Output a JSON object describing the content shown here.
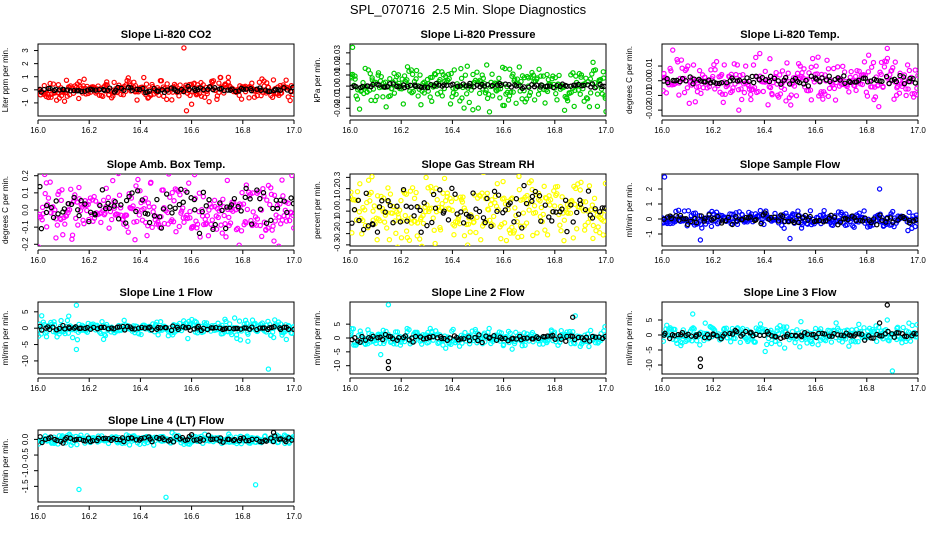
{
  "title": "SPL_070716  2.5 Min. Slope Diagnostics",
  "chart_data": [
    {
      "type": "scatter",
      "title": "Slope Li-820 CO2",
      "ylabel": "Liter ppm per min.",
      "xlim": [
        16.0,
        17.0
      ],
      "ylim": [
        -2.0,
        3.5
      ],
      "xticks": [
        16.0,
        16.2,
        16.4,
        16.6,
        16.8,
        17.0
      ],
      "xtick_labels": [
        "16.0",
        "16.2",
        "16.4",
        "16.6",
        "16.8",
        "17.0"
      ],
      "yticks": [
        -1,
        0,
        1,
        2,
        3
      ],
      "ytick_labels": [
        "-1",
        "0",
        "1",
        "2",
        "3"
      ],
      "series": [
        {
          "color": "#ff0000",
          "center": 0.0,
          "spread": 0.35,
          "outliers": [
            [
              16.57,
              3.2
            ],
            [
              16.58,
              -1.6
            ],
            [
              16.6,
              -1.1
            ]
          ]
        },
        {
          "color": "#000000",
          "center": 0.0,
          "spread": 0.1,
          "outliers": []
        }
      ]
    },
    {
      "type": "scatter",
      "title": "Slope Li-820 Pressure",
      "ylabel": "kPa per min.",
      "xlim": [
        16.0,
        17.0
      ],
      "ylim": [
        -0.027,
        0.038
      ],
      "xticks": [
        16.0,
        16.2,
        16.4,
        16.6,
        16.8,
        17.0
      ],
      "xtick_labels": [
        "16.0",
        "16.2",
        "16.4",
        "16.6",
        "16.8",
        "17.0"
      ],
      "yticks": [
        -0.02,
        -0.01,
        0.0,
        0.01,
        0.02,
        0.03
      ],
      "ytick_labels": [
        "-0.02",
        "-0.01",
        "0.00",
        "0.01",
        "0.02",
        "0.03"
      ],
      "series": [
        {
          "color": "#00cc00",
          "center": 0.0,
          "spread": 0.009,
          "outliers": [
            [
              16.01,
              0.035
            ],
            [
              17.0,
              -0.023
            ]
          ]
        },
        {
          "color": "#000000",
          "center": 0.0,
          "spread": 0.001,
          "outliers": []
        }
      ]
    },
    {
      "type": "scatter",
      "title": "Slope Li-820 Temp.",
      "ylabel": "degrees C per min.",
      "xlim": [
        16.0,
        17.0
      ],
      "ylim": [
        -0.024,
        0.025
      ],
      "xticks": [
        16.0,
        16.2,
        16.4,
        16.6,
        16.8,
        17.0
      ],
      "xtick_labels": [
        "16.0",
        "16.2",
        "16.4",
        "16.6",
        "16.8",
        "17.0"
      ],
      "yticks": [
        -0.02,
        -0.01,
        0.0,
        0.01
      ],
      "ytick_labels": [
        "-0.02",
        "-0.01",
        "0.00",
        "0.01"
      ],
      "series": [
        {
          "color": "#ff00ff",
          "center": 0.0,
          "spread": 0.007,
          "outliers": [
            [
              16.88,
              0.022
            ],
            [
              16.3,
              -0.02
            ]
          ]
        },
        {
          "color": "#000000",
          "center": 0.0,
          "spread": 0.0015,
          "outliers": []
        }
      ]
    },
    {
      "type": "scatter",
      "title": "Slope Amb. Box Temp.",
      "ylabel": "degrees C per min.",
      "xlim": [
        16.0,
        17.0
      ],
      "ylim": [
        -0.21,
        0.21
      ],
      "xticks": [
        16.0,
        16.2,
        16.4,
        16.6,
        16.8,
        17.0
      ],
      "xtick_labels": [
        "16.0",
        "16.2",
        "16.4",
        "16.6",
        "16.8",
        "17.0"
      ],
      "yticks": [
        -0.2,
        -0.1,
        0.0,
        0.1,
        0.2
      ],
      "ytick_labels": [
        "-0.2",
        "-0.1",
        "0.0",
        "0.1",
        "0.2"
      ],
      "series": [
        {
          "color": "#ff00ff",
          "center": 0.0,
          "spread": 0.09,
          "outliers": []
        },
        {
          "color": "#000000",
          "center": 0.0,
          "spread": 0.06,
          "outliers": []
        }
      ]
    },
    {
      "type": "scatter",
      "title": "Slope Gas Stream RH",
      "ylabel": "percent per min.",
      "xlim": [
        16.0,
        17.0
      ],
      "ylim": [
        -0.31,
        0.33
      ],
      "xticks": [
        16.0,
        16.2,
        16.4,
        16.6,
        16.8,
        17.0
      ],
      "xtick_labels": [
        "16.0",
        "16.2",
        "16.4",
        "16.6",
        "16.8",
        "17.0"
      ],
      "yticks": [
        -0.3,
        -0.2,
        -0.1,
        0.0,
        0.1,
        0.2,
        0.3
      ],
      "ytick_labels": [
        "-0.3",
        "-0.2",
        "-0.1",
        "0.0",
        "0.1",
        "0.2",
        "0.3"
      ],
      "series": [
        {
          "color": "#ffff00",
          "center": 0.0,
          "spread": 0.14,
          "outliers": []
        },
        {
          "color": "#000000",
          "center": 0.0,
          "spread": 0.1,
          "outliers": []
        }
      ]
    },
    {
      "type": "scatter",
      "title": "Slope Sample Flow",
      "ylabel": "ml/min per min.",
      "xlim": [
        16.0,
        17.0
      ],
      "ylim": [
        -1.8,
        3.0
      ],
      "xticks": [
        16.0,
        16.2,
        16.4,
        16.6,
        16.8,
        17.0
      ],
      "xtick_labels": [
        "16.0",
        "16.2",
        "16.4",
        "16.6",
        "16.8",
        "17.0"
      ],
      "yticks": [
        -1,
        0,
        1,
        2
      ],
      "ytick_labels": [
        "-1",
        "0",
        "1",
        "2"
      ],
      "series": [
        {
          "color": "#0000ff",
          "center": 0.0,
          "spread": 0.25,
          "outliers": [
            [
              16.01,
              2.8
            ],
            [
              16.85,
              2.0
            ],
            [
              16.5,
              -1.3
            ],
            [
              16.15,
              -1.4
            ]
          ]
        },
        {
          "color": "#000000",
          "center": 0.0,
          "spread": 0.15,
          "outliers": []
        }
      ]
    },
    {
      "type": "scatter",
      "title": "Slope Line 1 Flow",
      "ylabel": "ml/min per min.",
      "xlim": [
        16.0,
        17.0
      ],
      "ylim": [
        -14.0,
        8.0
      ],
      "xticks": [
        16.0,
        16.2,
        16.4,
        16.6,
        16.8,
        17.0
      ],
      "xtick_labels": [
        "16.0",
        "16.2",
        "16.4",
        "16.6",
        "16.8",
        "17.0"
      ],
      "yticks": [
        -10,
        -5,
        0,
        5
      ],
      "ytick_labels": [
        "-10",
        "-5",
        "0",
        "5"
      ],
      "series": [
        {
          "color": "#00ffff",
          "center": 0.0,
          "spread": 1.2,
          "outliers": [
            [
              16.15,
              7.0
            ],
            [
              16.15,
              -6.5
            ],
            [
              16.9,
              -12.5
            ],
            [
              16.82,
              -4.0
            ]
          ]
        },
        {
          "color": "#000000",
          "center": 0.0,
          "spread": 0.3,
          "outliers": []
        }
      ]
    },
    {
      "type": "scatter",
      "title": "Slope Line 2 Flow",
      "ylabel": "ml/min per min.",
      "xlim": [
        16.0,
        17.0
      ],
      "ylim": [
        -13.0,
        13.0
      ],
      "xticks": [
        16.0,
        16.2,
        16.4,
        16.6,
        16.8,
        17.0
      ],
      "xtick_labels": [
        "16.0",
        "16.2",
        "16.4",
        "16.6",
        "16.8",
        "17.0"
      ],
      "yticks": [
        -10,
        -5,
        0,
        5
      ],
      "ytick_labels": [
        "-10",
        "-5",
        "0",
        "5"
      ],
      "series": [
        {
          "color": "#00ffff",
          "center": 0.0,
          "spread": 1.5,
          "outliers": [
            [
              16.15,
              12.0
            ],
            [
              16.12,
              -6.0
            ],
            [
              16.88,
              8.0
            ]
          ]
        },
        {
          "color": "#000000",
          "center": 0.0,
          "spread": 0.6,
          "outliers": [
            [
              16.15,
              -11.0
            ],
            [
              16.15,
              -8.5
            ],
            [
              16.87,
              7.5
            ]
          ]
        }
      ]
    },
    {
      "type": "scatter",
      "title": "Slope Line 3 Flow",
      "ylabel": "ml/min per min.",
      "xlim": [
        16.0,
        17.0
      ],
      "ylim": [
        -13.0,
        11.0
      ],
      "xticks": [
        16.0,
        16.2,
        16.4,
        16.6,
        16.8,
        17.0
      ],
      "xtick_labels": [
        "16.0",
        "16.2",
        "16.4",
        "16.6",
        "16.8",
        "17.0"
      ],
      "yticks": [
        -10,
        -5,
        0,
        5
      ],
      "ytick_labels": [
        "-10",
        "-5",
        "0",
        "5"
      ],
      "series": [
        {
          "color": "#00ffff",
          "center": 0.0,
          "spread": 1.8,
          "outliers": [
            [
              16.12,
              7.0
            ],
            [
              16.9,
              -12.0
            ],
            [
              16.88,
              5.0
            ]
          ]
        },
        {
          "color": "#000000",
          "center": 0.0,
          "spread": 0.6,
          "outliers": [
            [
              16.15,
              -10.5
            ],
            [
              16.15,
              -8.0
            ],
            [
              16.88,
              10.0
            ],
            [
              16.85,
              4.0
            ]
          ]
        }
      ]
    },
    {
      "type": "scatter",
      "title": "Slope Line 4 (LT) Flow",
      "ylabel": "ml/min per min.",
      "xlim": [
        16.0,
        17.0
      ],
      "ylim": [
        -2.0,
        0.3
      ],
      "xticks": [
        16.0,
        16.2,
        16.4,
        16.6,
        16.8,
        17.0
      ],
      "xtick_labels": [
        "16.0",
        "16.2",
        "16.4",
        "16.6",
        "16.8",
        "17.0"
      ],
      "yticks": [
        -1.5,
        -1.0,
        -0.5,
        0.0
      ],
      "ytick_labels": [
        "-1.5",
        "-1.0",
        "-0.5",
        "0.0"
      ],
      "series": [
        {
          "color": "#00ffff",
          "center": 0.0,
          "spread": 0.08,
          "outliers": [
            [
              16.16,
              -1.6
            ],
            [
              16.5,
              -1.85
            ],
            [
              16.85,
              -1.45
            ]
          ]
        },
        {
          "color": "#000000",
          "center": 0.0,
          "spread": 0.05,
          "outliers": [
            [
              16.92,
              0.22
            ],
            [
              16.6,
              0.15
            ]
          ]
        }
      ]
    }
  ]
}
